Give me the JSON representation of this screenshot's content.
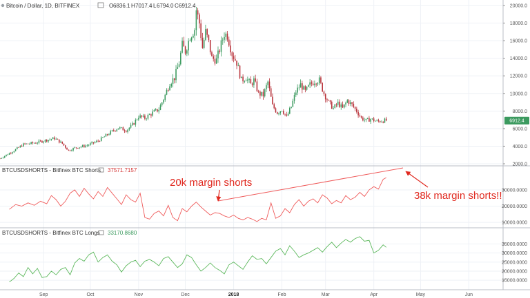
{
  "colors": {
    "up": "#3c9a5f",
    "down": "#b8323a",
    "shorts_line": "#ef5a5a",
    "longs_line": "#5cb85c",
    "annotation": "#e0281e",
    "price_badge": "#3c9a5f",
    "shorts_badge_text": "#d33434",
    "longs_badge_text": "#3c9a5f",
    "grid": "#eef1f6",
    "pane_border": "#b9bcc4"
  },
  "header": {
    "symbol": "Bitcoin / Dollar, 1D, BITFINEX",
    "ohlc": [
      {
        "label": "O",
        "value": "6836.1"
      },
      {
        "label": "H",
        "value": "7017.4"
      },
      {
        "label": "L",
        "value": "6794.0"
      },
      {
        "label": "C",
        "value": "6912.4"
      }
    ]
  },
  "shorts_header": {
    "label": "BTCUSDSHORTS - Bitfinex BTC Shorts",
    "value": "37571.7157"
  },
  "longs_header": {
    "label": "BTCUSDSHORTS - Bitfinex BTC Longs",
    "value": "33170.8680"
  },
  "annotations": {
    "left": "20k margin shorts",
    "right": "38k margin shorts!!"
  },
  "chart_data": [
    {
      "type": "candlestick",
      "pane": "price",
      "title": "Bitcoin / Dollar, 1D, BITFINEX",
      "ylim": [
        2000,
        20000
      ],
      "y_ticks": [
        2000,
        4000,
        6000,
        8000,
        10000,
        12000,
        14000,
        16000,
        18000,
        20000
      ],
      "y_tick_labels": [
        "2000.0",
        "4000.0",
        "6000.0",
        "8000.0",
        "10000.0",
        "12000.0",
        "14000.0",
        "16000.0",
        "18000.0",
        "20000.0"
      ],
      "last_price_label": "6912.4",
      "x_ticks": [
        "Sep",
        "Oct",
        "Nov",
        "Dec",
        "2018",
        "Feb",
        "Mar",
        "Apr",
        "May",
        "Jun"
      ],
      "x_tick_days": [
        10,
        40,
        71,
        101,
        132,
        163,
        191,
        222,
        252,
        283
      ],
      "x_range_days": [
        -18,
        305
      ],
      "close_anchors": [
        [
          -18,
          2600
        ],
        [
          -10,
          3400
        ],
        [
          -3,
          4200
        ],
        [
          5,
          4400
        ],
        [
          12,
          4700
        ],
        [
          17,
          4900
        ],
        [
          22,
          4300
        ],
        [
          26,
          3500
        ],
        [
          30,
          3800
        ],
        [
          38,
          4100
        ],
        [
          45,
          4600
        ],
        [
          50,
          5200
        ],
        [
          55,
          5800
        ],
        [
          58,
          6100
        ],
        [
          63,
          5800
        ],
        [
          67,
          6400
        ],
        [
          71,
          7400
        ],
        [
          75,
          7200
        ],
        [
          80,
          7800
        ],
        [
          84,
          8200
        ],
        [
          88,
          9800
        ],
        [
          91,
          11200
        ],
        [
          94,
          11800
        ],
        [
          97,
          13500
        ],
        [
          99,
          15500
        ],
        [
          101,
          14800
        ],
        [
          104,
          16500
        ],
        [
          107,
          17300
        ],
        [
          108,
          19500
        ],
        [
          110,
          18000
        ],
        [
          112,
          15200
        ],
        [
          114,
          17000
        ],
        [
          116,
          15800
        ],
        [
          118,
          14000
        ],
        [
          121,
          13800
        ],
        [
          124,
          15600
        ],
        [
          126,
          16800
        ],
        [
          128,
          16600
        ],
        [
          131,
          14500
        ],
        [
          134,
          13500
        ],
        [
          137,
          11500
        ],
        [
          140,
          11800
        ],
        [
          143,
          11000
        ],
        [
          145,
          11500
        ],
        [
          148,
          10000
        ],
        [
          151,
          9800
        ],
        [
          154,
          11300
        ],
        [
          157,
          8600
        ],
        [
          160,
          7800
        ],
        [
          163,
          8200
        ],
        [
          166,
          7300
        ],
        [
          169,
          8500
        ],
        [
          172,
          10200
        ],
        [
          175,
          11000
        ],
        [
          178,
          10200
        ],
        [
          181,
          11000
        ],
        [
          184,
          11400
        ],
        [
          187,
          11500
        ],
        [
          190,
          10000
        ],
        [
          193,
          9000
        ],
        [
          196,
          8300
        ],
        [
          199,
          8900
        ],
        [
          202,
          8300
        ],
        [
          205,
          9200
        ],
        [
          208,
          8700
        ],
        [
          211,
          8000
        ],
        [
          214,
          7200
        ],
        [
          217,
          6900
        ],
        [
          220,
          7100
        ],
        [
          224,
          6800
        ],
        [
          227,
          6900
        ],
        [
          230,
          6912.4
        ]
      ]
    },
    {
      "type": "line",
      "pane": "shorts",
      "series": [
        {
          "name": "BTCUSDSHORTS - Bitfinex BTC Shorts"
        }
      ],
      "ylim": [
        7500,
        41000
      ],
      "y_ticks": [
        10000,
        20000,
        30000
      ],
      "y_tick_labels": [
        "10000.0000",
        "20000.0000",
        "30000.0000"
      ],
      "last_value_label": "37571.7157",
      "x": [
        -12,
        -8,
        -4,
        0,
        4,
        8,
        12,
        15,
        18,
        21,
        24,
        27,
        30,
        33,
        36,
        39,
        42,
        45,
        48,
        51,
        54,
        57,
        60,
        63,
        66,
        69,
        72,
        75,
        78,
        81,
        84,
        87,
        90,
        93,
        96,
        99,
        102,
        105,
        108,
        111,
        114,
        117,
        120,
        123,
        126,
        129,
        132,
        135,
        138,
        141,
        144,
        147,
        150,
        153,
        156,
        159,
        162,
        165,
        168,
        171,
        174,
        177,
        180,
        183,
        186,
        189,
        192,
        195,
        198,
        201,
        204,
        207,
        210,
        213,
        216,
        219,
        222,
        225,
        228,
        230
      ],
      "values": [
        18000,
        21000,
        20000,
        22000,
        20500,
        23000,
        21500,
        26500,
        24000,
        20000,
        23000,
        28000,
        30000,
        26000,
        31000,
        27500,
        24500,
        29000,
        26000,
        31500,
        28000,
        24500,
        21000,
        27000,
        24000,
        22500,
        28000,
        13000,
        12000,
        15500,
        17000,
        14000,
        20500,
        13000,
        11000,
        18500,
        16500,
        20000,
        22500,
        19500,
        17000,
        14500,
        16000,
        15500,
        14000,
        13000,
        14500,
        12500,
        11500,
        13000,
        12000,
        10500,
        12500,
        11500,
        22000,
        12500,
        14000,
        18500,
        16000,
        21000,
        24000,
        20000,
        23000,
        24500,
        22000,
        27000,
        25000,
        21500,
        23500,
        22000,
        26500,
        24000,
        25500,
        28500,
        26000,
        30000,
        32000,
        30500,
        36500,
        37571.7157
      ]
    },
    {
      "type": "line",
      "pane": "longs",
      "series": [
        {
          "name": "BTCUSDSHORTS - Bitfinex BTC Longs"
        }
      ],
      "ylim": [
        10500,
        40500
      ],
      "y_ticks": [
        15000,
        20000,
        25000,
        30000,
        35000
      ],
      "y_tick_labels": [
        "15000.0000",
        "20000.0000",
        "25000.0000",
        "30000.0000",
        "35000.0000"
      ],
      "last_value_label": "33170.8680",
      "x": [
        -12,
        -9,
        -6,
        -3,
        0,
        3,
        6,
        9,
        12,
        15,
        18,
        21,
        24,
        27,
        30,
        33,
        36,
        39,
        42,
        45,
        48,
        51,
        54,
        57,
        60,
        63,
        66,
        69,
        72,
        75,
        78,
        81,
        84,
        87,
        90,
        93,
        96,
        99,
        102,
        105,
        108,
        111,
        114,
        117,
        120,
        123,
        126,
        129,
        132,
        135,
        138,
        141,
        144,
        147,
        150,
        153,
        156,
        159,
        162,
        165,
        168,
        171,
        174,
        177,
        180,
        183,
        186,
        189,
        192,
        195,
        198,
        201,
        204,
        207,
        210,
        213,
        216,
        219,
        222,
        225,
        228,
        230
      ],
      "values": [
        14000,
        16000,
        19000,
        17000,
        22000,
        18500,
        21500,
        16500,
        17000,
        20000,
        18000,
        21000,
        22000,
        18000,
        24500,
        27000,
        25500,
        29000,
        30500,
        25000,
        27500,
        29000,
        25500,
        23500,
        19500,
        23000,
        25000,
        26000,
        22500,
        25500,
        26500,
        25000,
        23000,
        27000,
        28000,
        25000,
        22000,
        24000,
        29000,
        27500,
        23500,
        20000,
        22000,
        24500,
        22000,
        20500,
        18500,
        23500,
        25000,
        23000,
        21000,
        25000,
        28500,
        26500,
        27000,
        24000,
        27500,
        31000,
        32500,
        29000,
        34000,
        31000,
        27500,
        29000,
        30000,
        31500,
        33000,
        30500,
        33500,
        36000,
        33000,
        35500,
        37500,
        36000,
        38000,
        39000,
        36500,
        37000,
        30000,
        31500,
        34500,
        33170.868
      ]
    }
  ]
}
